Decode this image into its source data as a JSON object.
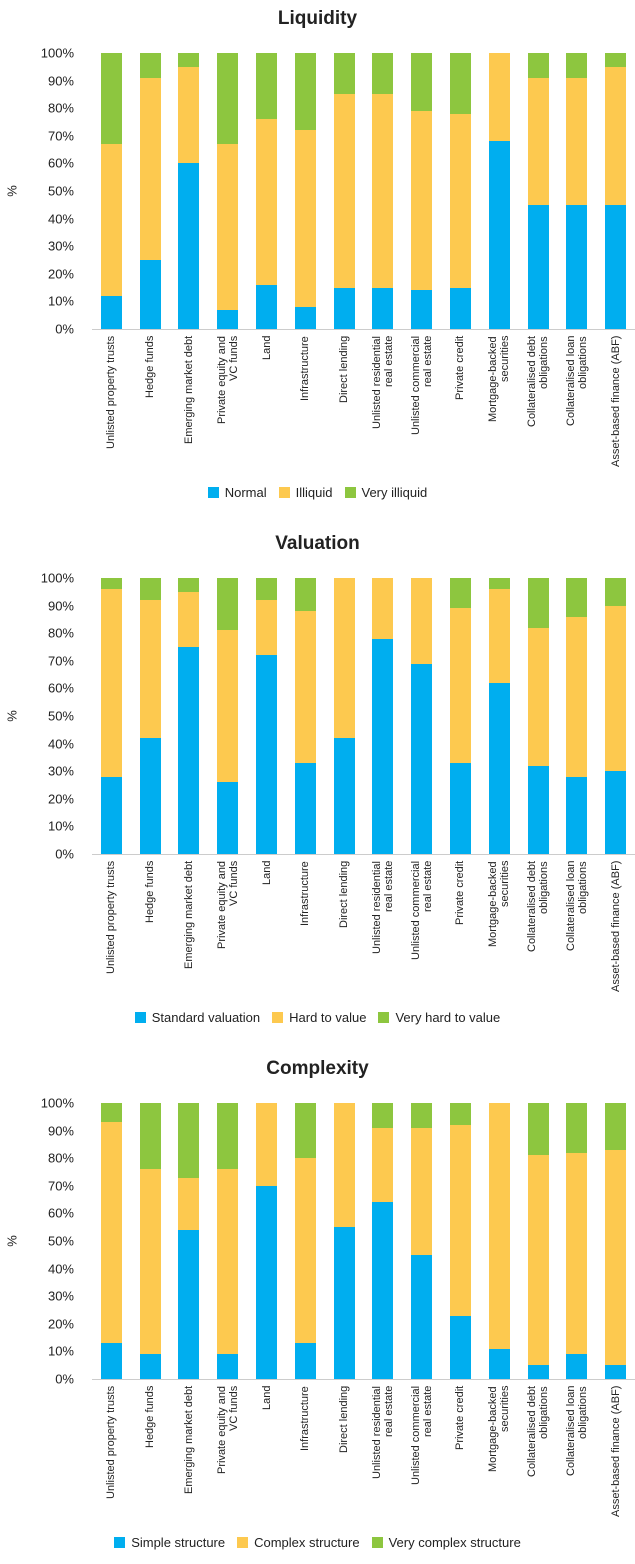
{
  "chart_data": [
    {
      "type": "bar",
      "stacked": true,
      "title": "Liquidity",
      "ylabel": "%",
      "categories": [
        "Unlisted property trusts",
        "Hedge funds",
        "Emerging market debt",
        "Private equity and\nVC funds",
        "Land",
        "Infrastructure",
        "Direct lending",
        "Unlisted residential\nreal estate",
        "Unlisted commercial\nreal estate",
        "Private credit",
        "Mortgage-backed\nsecurities",
        "Collateralised debt\nobligations",
        "Collateralised loan\nobligations",
        "Asset-based finance (ABF)"
      ],
      "series": [
        {
          "name": "Normal",
          "color": "#00aeef",
          "values": [
            12,
            25,
            60,
            7,
            16,
            8,
            15,
            15,
            14,
            15,
            68,
            45,
            45,
            45
          ]
        },
        {
          "name": "Illiquid",
          "color": "#fdc94f",
          "values": [
            55,
            66,
            35,
            60,
            60,
            64,
            70,
            70,
            65,
            63,
            32,
            46,
            46,
            50
          ]
        },
        {
          "name": "Very illiquid",
          "color": "#8dc63f",
          "values": [
            33,
            9,
            5,
            33,
            24,
            28,
            15,
            15,
            21,
            22,
            0,
            9,
            9,
            5
          ]
        }
      ],
      "ylim": [
        0,
        100
      ],
      "yticks": [
        {
          "value": 0,
          "label": "0%"
        },
        {
          "value": 10,
          "label": "10%"
        },
        {
          "value": 20,
          "label": "20%"
        },
        {
          "value": 30,
          "label": "30%"
        },
        {
          "value": 40,
          "label": "40%"
        },
        {
          "value": 50,
          "label": "50%"
        },
        {
          "value": 60,
          "label": "60%"
        },
        {
          "value": 70,
          "label": "70%"
        },
        {
          "value": 80,
          "label": "80%"
        },
        {
          "value": 90,
          "label": "90%"
        },
        {
          "value": 100,
          "label": "100%"
        }
      ],
      "legend": "bottom"
    },
    {
      "type": "bar",
      "stacked": true,
      "title": "Valuation",
      "ylabel": "%",
      "categories": [
        "Unlisted property trusts",
        "Hedge funds",
        "Emerging market debt",
        "Private equity and\nVC funds",
        "Land",
        "Infrastructure",
        "Direct lending",
        "Unlisted residential\nreal estate",
        "Unlisted commercial\nreal estate",
        "Private credit",
        "Mortgage-backed\nsecurities",
        "Collateralised debt\nobligations",
        "Collateralised loan\nobligations",
        "Asset-based finance (ABF)"
      ],
      "series": [
        {
          "name": "Standard valuation",
          "color": "#00aeef",
          "values": [
            28,
            42,
            75,
            26,
            72,
            33,
            42,
            78,
            69,
            33,
            62,
            32,
            28,
            30
          ]
        },
        {
          "name": "Hard to value",
          "color": "#fdc94f",
          "values": [
            68,
            50,
            20,
            55,
            20,
            55,
            58,
            22,
            31,
            56,
            34,
            50,
            58,
            60
          ]
        },
        {
          "name": "Very hard to value",
          "color": "#8dc63f",
          "values": [
            4,
            8,
            5,
            19,
            8,
            12,
            0,
            0,
            0,
            11,
            4,
            18,
            14,
            10
          ]
        }
      ],
      "ylim": [
        0,
        100
      ],
      "yticks": [
        {
          "value": 0,
          "label": "0%"
        },
        {
          "value": 10,
          "label": "10%"
        },
        {
          "value": 20,
          "label": "20%"
        },
        {
          "value": 30,
          "label": "30%"
        },
        {
          "value": 40,
          "label": "40%"
        },
        {
          "value": 50,
          "label": "50%"
        },
        {
          "value": 60,
          "label": "60%"
        },
        {
          "value": 70,
          "label": "70%"
        },
        {
          "value": 80,
          "label": "80%"
        },
        {
          "value": 90,
          "label": "90%"
        },
        {
          "value": 100,
          "label": "100%"
        }
      ],
      "legend": "bottom"
    },
    {
      "type": "bar",
      "stacked": true,
      "title": "Complexity",
      "ylabel": "%",
      "categories": [
        "Unlisted property trusts",
        "Hedge funds",
        "Emerging market debt",
        "Private equity and\nVC funds",
        "Land",
        "Infrastructure",
        "Direct lending",
        "Unlisted residential\nreal estate",
        "Unlisted commercial\nreal estate",
        "Private credit",
        "Mortgage-backed\nsecurities",
        "Collateralised debt\nobligations",
        "Collateralised loan\nobligations",
        "Asset-based finance (ABF)"
      ],
      "series": [
        {
          "name": "Simple structure",
          "color": "#00aeef",
          "values": [
            13,
            9,
            54,
            9,
            70,
            13,
            55,
            64,
            45,
            23,
            11,
            5,
            9,
            5
          ]
        },
        {
          "name": "Complex structure",
          "color": "#fdc94f",
          "values": [
            80,
            67,
            19,
            67,
            30,
            67,
            45,
            27,
            46,
            69,
            89,
            76,
            73,
            78
          ]
        },
        {
          "name": "Very complex structure",
          "color": "#8dc63f",
          "values": [
            7,
            24,
            27,
            24,
            0,
            20,
            0,
            9,
            9,
            8,
            0,
            19,
            18,
            17
          ]
        }
      ],
      "ylim": [
        0,
        100
      ],
      "yticks": [
        {
          "value": 0,
          "label": "0%"
        },
        {
          "value": 10,
          "label": "10%"
        },
        {
          "value": 20,
          "label": "20%"
        },
        {
          "value": 30,
          "label": "30%"
        },
        {
          "value": 40,
          "label": "40%"
        },
        {
          "value": 50,
          "label": "50%"
        },
        {
          "value": 60,
          "label": "60%"
        },
        {
          "value": 70,
          "label": "70%"
        },
        {
          "value": 80,
          "label": "80%"
        },
        {
          "value": 90,
          "label": "90%"
        },
        {
          "value": 100,
          "label": "100%"
        }
      ],
      "legend": "bottom"
    }
  ]
}
